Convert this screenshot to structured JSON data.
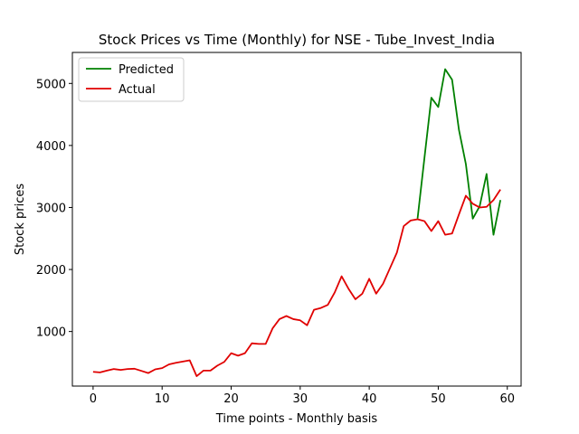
{
  "chart_data": {
    "type": "line",
    "title": "Stock Prices vs Time (Monthly) for NSE - Tube_Invest_India",
    "xlabel": "Time points - Monthly basis",
    "ylabel": "Stock prices",
    "xlim": [
      -3,
      62
    ],
    "ylim": [
      120,
      5500
    ],
    "xticks": [
      0,
      10,
      20,
      30,
      40,
      50,
      60
    ],
    "yticks": [
      1000,
      2000,
      3000,
      4000,
      5000
    ],
    "grid": false,
    "legend_position": "upper-left",
    "series": [
      {
        "name": "Predicted",
        "color": "#008000",
        "x": [
          47,
          48,
          49,
          50,
          51,
          52,
          53,
          54,
          55,
          56,
          57,
          58,
          59
        ],
        "values": [
          2820,
          3800,
          4770,
          4620,
          5230,
          5060,
          4250,
          3700,
          2820,
          3020,
          3540,
          2560,
          3120
        ]
      },
      {
        "name": "Actual",
        "color": "#e00000",
        "x": [
          0,
          1,
          2,
          3,
          4,
          5,
          6,
          7,
          8,
          9,
          10,
          11,
          12,
          13,
          14,
          15,
          16,
          17,
          18,
          19,
          20,
          21,
          22,
          23,
          24,
          25,
          26,
          27,
          28,
          29,
          30,
          31,
          32,
          33,
          34,
          35,
          36,
          37,
          38,
          39,
          40,
          41,
          42,
          43,
          44,
          45,
          46,
          47,
          48,
          49,
          50,
          51,
          52,
          53,
          54,
          55,
          56,
          57,
          58,
          59
        ],
        "values": [
          350,
          340,
          370,
          395,
          380,
          395,
          400,
          365,
          330,
          390,
          410,
          470,
          495,
          515,
          535,
          280,
          370,
          370,
          450,
          510,
          650,
          610,
          650,
          810,
          800,
          800,
          1050,
          1200,
          1250,
          1200,
          1180,
          1100,
          1350,
          1380,
          1430,
          1630,
          1890,
          1690,
          1520,
          1610,
          1850,
          1610,
          1770,
          2020,
          2270,
          2700,
          2790,
          2810,
          2780,
          2620,
          2780,
          2560,
          2580,
          2890,
          3190,
          3060,
          3000,
          3010,
          3120,
          3290
        ]
      }
    ]
  }
}
